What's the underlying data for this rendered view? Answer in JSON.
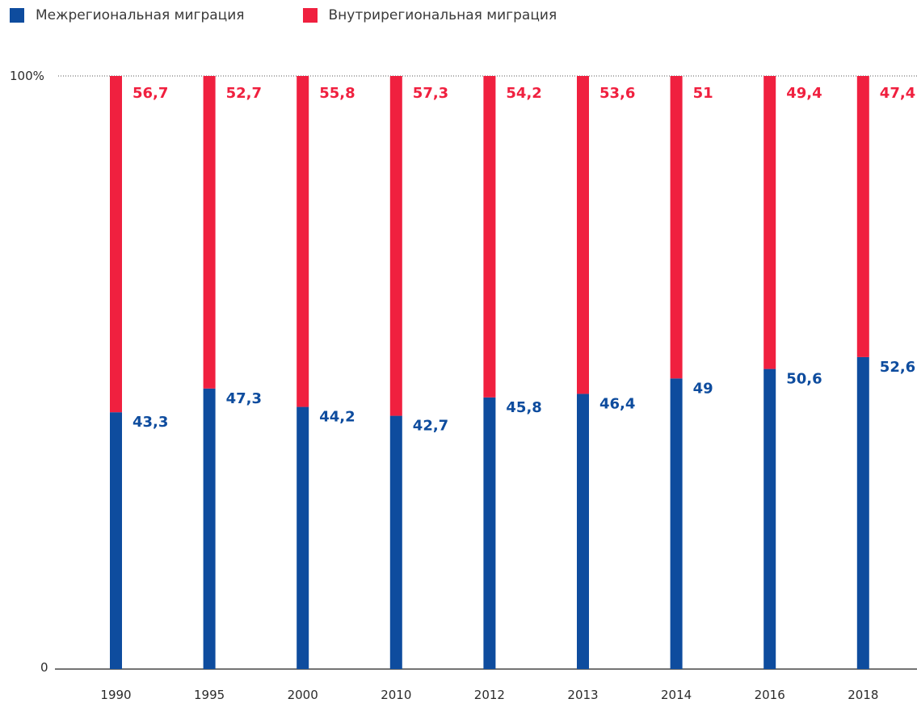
{
  "chart_data": {
    "type": "bar",
    "stacked": true,
    "categories": [
      "1990",
      "1995",
      "2000",
      "2010",
      "2012",
      "2013",
      "2014",
      "2016",
      "2018"
    ],
    "series": [
      {
        "name": "Межрегиональная миграция",
        "color": "#0e4c9e",
        "values": [
          43.3,
          47.3,
          44.2,
          42.7,
          45.8,
          46.4,
          49,
          50.6,
          52.6
        ],
        "labels": [
          "43,3",
          "47,3",
          "44,2",
          "42,7",
          "45,8",
          "46,4",
          "49",
          "50,6",
          "52,6"
        ]
      },
      {
        "name": "Внутрирегиональная миграция",
        "color": "#f0203f",
        "values": [
          56.7,
          52.7,
          55.8,
          57.3,
          54.2,
          53.6,
          51,
          49.4,
          47.4
        ],
        "labels": [
          "56,7",
          "52,7",
          "55,8",
          "57,3",
          "54,2",
          "53,6",
          "51",
          "49,4",
          "47,4"
        ]
      }
    ],
    "ylim": [
      0,
      100
    ],
    "y_tick_labels": [
      "0",
      "100%"
    ],
    "title": "",
    "xlabel": "",
    "ylabel": "",
    "legend_position": "top-left",
    "grid": false
  }
}
